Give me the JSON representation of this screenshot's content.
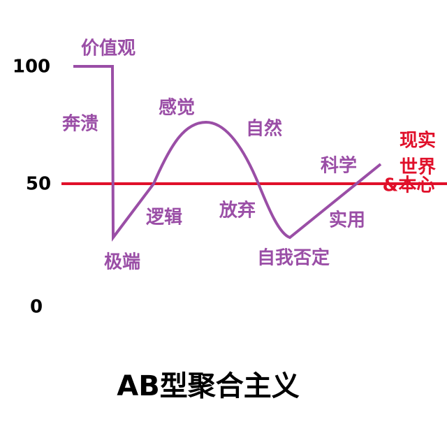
{
  "title": "AB型聚合主义",
  "axis_labels": [
    "100",
    "50",
    "0"
  ],
  "curve_labels": [
    "价值观",
    "奔溃",
    "极端",
    "逻辑",
    "感觉",
    "自然",
    "放弃",
    "自我否定",
    "实用",
    "科学"
  ],
  "line_label": [
    "现实",
    "世界",
    "&本心"
  ]
}
